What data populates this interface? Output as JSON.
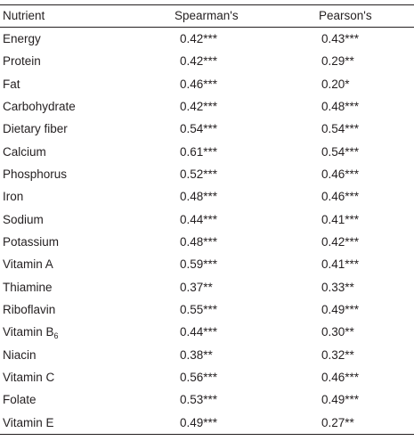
{
  "table": {
    "headers": {
      "nutrient": "Nutrient",
      "spearman": "Spearman's",
      "pearson": "Pearson's"
    },
    "rows": [
      {
        "nutrient": "Energy",
        "spearman": "0.42***",
        "pearson": "0.43***"
      },
      {
        "nutrient": "Protein",
        "spearman": "0.42***",
        "pearson": "0.29**"
      },
      {
        "nutrient": "Fat",
        "spearman": "0.46***",
        "pearson": "0.20*"
      },
      {
        "nutrient": "Carbohydrate",
        "spearman": "0.42***",
        "pearson": "0.48***"
      },
      {
        "nutrient": "Dietary fiber",
        "spearman": "0.54***",
        "pearson": "0.54***"
      },
      {
        "nutrient": "Calcium",
        "spearman": "0.61***",
        "pearson": "0.54***"
      },
      {
        "nutrient": "Phosphorus",
        "spearman": "0.52***",
        "pearson": "0.46***"
      },
      {
        "nutrient": "Iron",
        "spearman": "0.48***",
        "pearson": "0.46***"
      },
      {
        "nutrient": "Sodium",
        "spearman": "0.44***",
        "pearson": "0.41***"
      },
      {
        "nutrient": "Potassium",
        "spearman": "0.48***",
        "pearson": "0.42***"
      },
      {
        "nutrient": "Vitamin A",
        "spearman": "0.59***",
        "pearson": "0.41***"
      },
      {
        "nutrient": "Thiamine",
        "spearman": "0.37**",
        "pearson": "0.33**"
      },
      {
        "nutrient": "Riboflavin",
        "spearman": "0.55***",
        "pearson": "0.49***"
      },
      {
        "nutrient": "Vitamin B",
        "nutrient_sub": "6",
        "spearman": "0.44***",
        "pearson": "0.30**"
      },
      {
        "nutrient": "Niacin",
        "spearman": "0.38**",
        "pearson": "0.32**"
      },
      {
        "nutrient": "Vitamin C",
        "spearman": "0.56***",
        "pearson": "0.46***"
      },
      {
        "nutrient": "Folate",
        "spearman": "0.53***",
        "pearson": "0.49***"
      },
      {
        "nutrient": "Vitamin E",
        "spearman": "0.49***",
        "pearson": "0.27**"
      }
    ]
  }
}
